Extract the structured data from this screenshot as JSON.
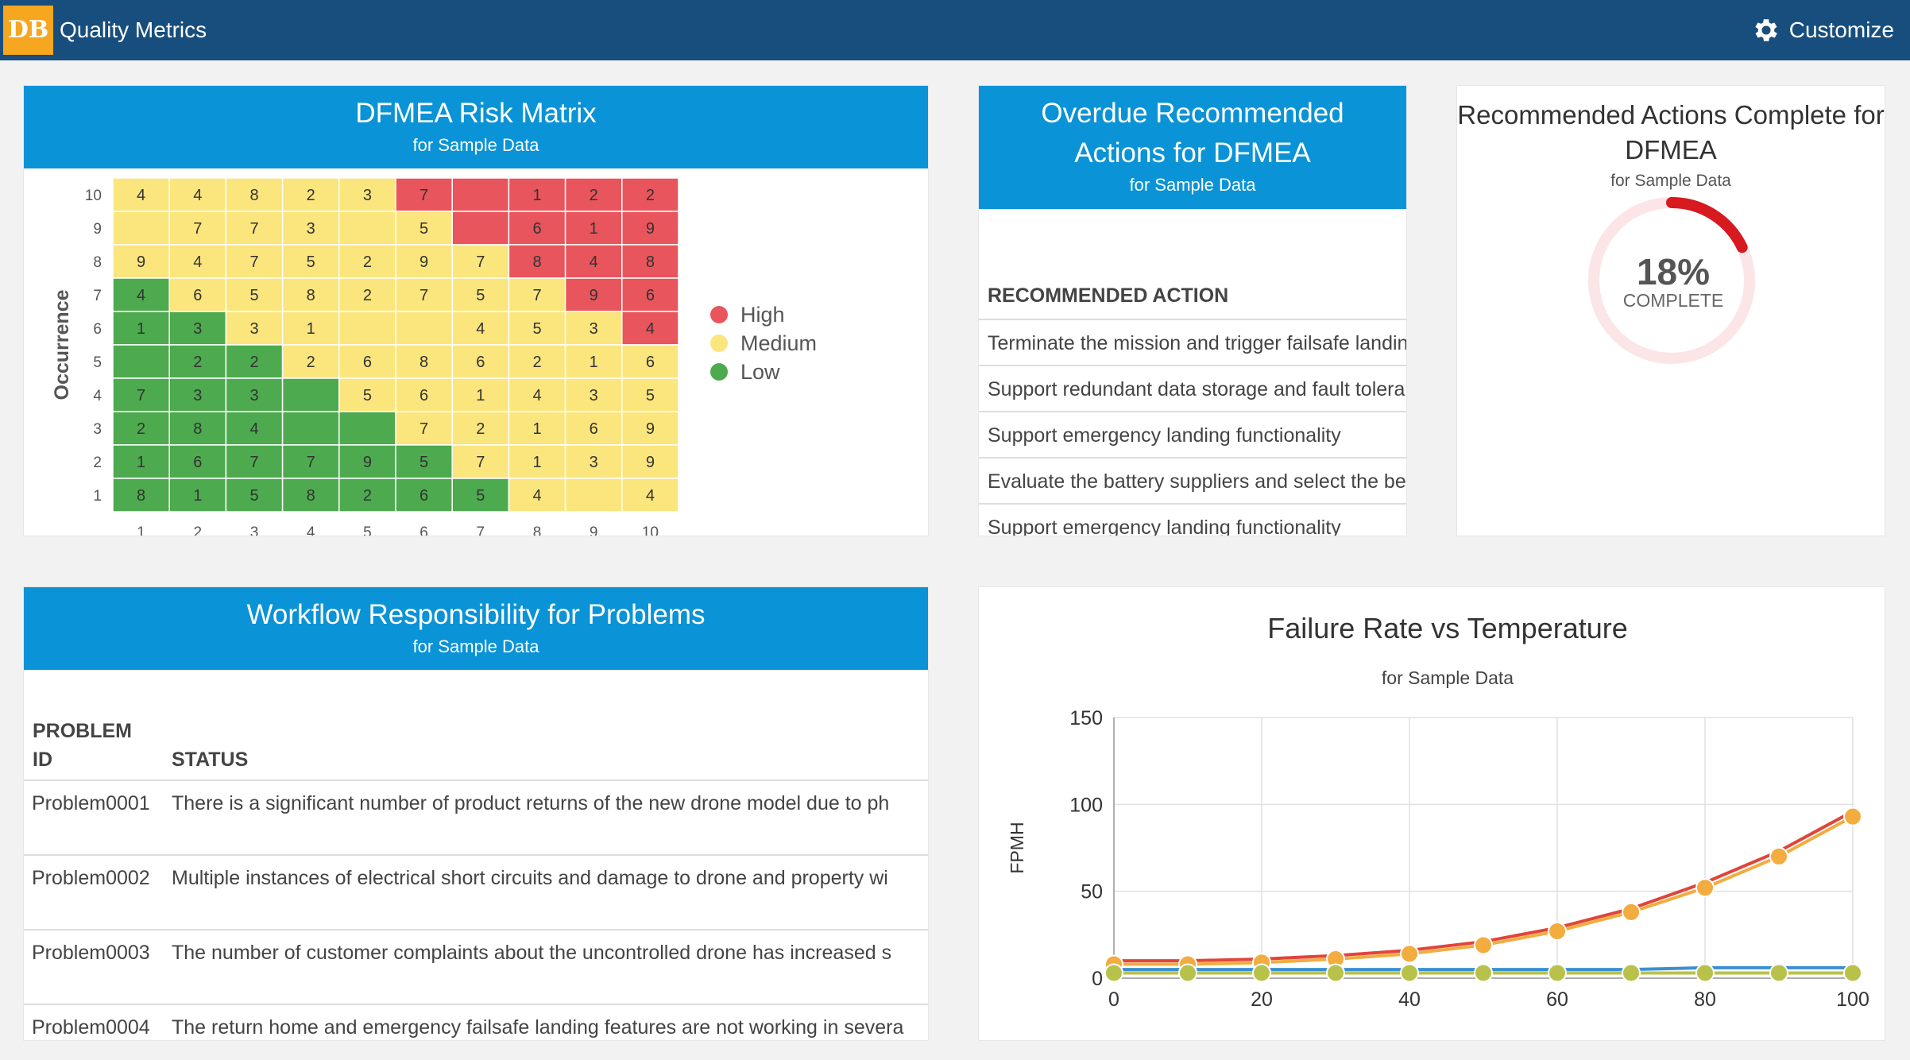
{
  "app": {
    "logo": "DB",
    "title": "Quality Metrics",
    "customize_label": "Customize"
  },
  "risk_matrix": {
    "title": "DFMEA Risk Matrix",
    "subtitle": "for Sample Data",
    "y_axis_label": "Occurrence",
    "x_ticks": [
      "1",
      "2",
      "3",
      "4",
      "5",
      "6",
      "7",
      "8",
      "9",
      "10"
    ],
    "y_ticks": [
      "10",
      "9",
      "8",
      "7",
      "6",
      "5",
      "4",
      "3",
      "2",
      "1"
    ],
    "colors": {
      "red": "#e8555c",
      "yellow": "#fbe57d",
      "green": "#4daa4f"
    },
    "legend": [
      {
        "label": "High",
        "color": "#e8555c"
      },
      {
        "label": "Medium",
        "color": "#fbe57d"
      },
      {
        "label": "Low",
        "color": "#4daa4f"
      }
    ],
    "rows": [
      {
        "occurrence": "10",
        "colors": [
          "Y",
          "Y",
          "Y",
          "Y",
          "Y",
          "R",
          "R",
          "R",
          "R",
          "R"
        ],
        "values": [
          "4",
          "4",
          "8",
          "2",
          "3",
          "7",
          "",
          "1",
          "2",
          "2"
        ]
      },
      {
        "occurrence": "9",
        "colors": [
          "Y",
          "Y",
          "Y",
          "Y",
          "Y",
          "Y",
          "R",
          "R",
          "R",
          "R"
        ],
        "values": [
          "",
          "7",
          "7",
          "3",
          "",
          "5",
          "",
          "6",
          "1",
          "9"
        ]
      },
      {
        "occurrence": "8",
        "colors": [
          "Y",
          "Y",
          "Y",
          "Y",
          "Y",
          "Y",
          "Y",
          "R",
          "R",
          "R"
        ],
        "values": [
          "9",
          "4",
          "7",
          "5",
          "2",
          "9",
          "7",
          "8",
          "4",
          "8"
        ]
      },
      {
        "occurrence": "7",
        "colors": [
          "G",
          "Y",
          "Y",
          "Y",
          "Y",
          "Y",
          "Y",
          "Y",
          "R",
          "R"
        ],
        "values": [
          "4",
          "6",
          "5",
          "8",
          "2",
          "7",
          "5",
          "7",
          "9",
          "6"
        ]
      },
      {
        "occurrence": "6",
        "colors": [
          "G",
          "G",
          "Y",
          "Y",
          "Y",
          "Y",
          "Y",
          "Y",
          "Y",
          "R"
        ],
        "values": [
          "1",
          "3",
          "3",
          "1",
          "",
          "",
          "4",
          "5",
          "3",
          "4"
        ]
      },
      {
        "occurrence": "5",
        "colors": [
          "G",
          "G",
          "G",
          "Y",
          "Y",
          "Y",
          "Y",
          "Y",
          "Y",
          "Y"
        ],
        "values": [
          "",
          "2",
          "2",
          "2",
          "6",
          "8",
          "6",
          "2",
          "1",
          "6"
        ]
      },
      {
        "occurrence": "4",
        "colors": [
          "G",
          "G",
          "G",
          "G",
          "Y",
          "Y",
          "Y",
          "Y",
          "Y",
          "Y"
        ],
        "values": [
          "7",
          "3",
          "3",
          "",
          "5",
          "6",
          "1",
          "4",
          "3",
          "5"
        ]
      },
      {
        "occurrence": "3",
        "colors": [
          "G",
          "G",
          "G",
          "G",
          "G",
          "Y",
          "Y",
          "Y",
          "Y",
          "Y"
        ],
        "values": [
          "2",
          "8",
          "4",
          "",
          "",
          "7",
          "2",
          "1",
          "6",
          "9"
        ]
      },
      {
        "occurrence": "2",
        "colors": [
          "G",
          "G",
          "G",
          "G",
          "G",
          "G",
          "Y",
          "Y",
          "Y",
          "Y"
        ],
        "values": [
          "1",
          "6",
          "7",
          "7",
          "9",
          "5",
          "7",
          "1",
          "3",
          "9"
        ]
      },
      {
        "occurrence": "1",
        "colors": [
          "G",
          "G",
          "G",
          "G",
          "G",
          "G",
          "G",
          "Y",
          "Y",
          "Y"
        ],
        "values": [
          "8",
          "1",
          "5",
          "8",
          "2",
          "6",
          "5",
          "4",
          "",
          "4"
        ]
      }
    ]
  },
  "overdue": {
    "title_line1": "Overdue Recommended",
    "title_line2": "Actions for DFMEA",
    "subtitle": "for Sample Data",
    "column_header": "RECOMMENDED ACTION",
    "rows": [
      "Terminate the mission and trigger failsafe landing",
      "Support redundant data storage and fault tolerance",
      "Support emergency landing functionality",
      "Evaluate the battery suppliers and select the best",
      "Support emergency landing functionality"
    ]
  },
  "complete": {
    "title_line1": "Recommended Actions Complete for",
    "title_line2": "DFMEA",
    "subtitle": "for Sample Data",
    "percent_text": "18%",
    "percent_value": 18,
    "complete_label": "COMPLETE",
    "color": "#d71920",
    "track_color": "#fbe5e6"
  },
  "workflow": {
    "title": "Workflow Responsibility for Problems",
    "subtitle": "for Sample Data",
    "col1_line1": "PROBLEM",
    "col1_line2": "ID",
    "col2": "STATUS",
    "rows": [
      {
        "id": "Problem0001",
        "status": "There is a significant number of product returns of the new drone model due to ph"
      },
      {
        "id": "Problem0002",
        "status": "Multiple instances of electrical short circuits and damage to drone and property wi"
      },
      {
        "id": "Problem0003",
        "status": "The number of customer complaints about the uncontrolled drone has increased s"
      },
      {
        "id": "Problem0004",
        "status": "The return home and emergency failsafe landing features are not working in severa"
      }
    ]
  },
  "chart_data": {
    "type": "line",
    "title": "Failure Rate vs Temperature",
    "subtitle": "for Sample Data",
    "xlabel": "",
    "ylabel": "FPMH",
    "xlim": [
      0,
      100
    ],
    "ylim": [
      0,
      150
    ],
    "x_ticks": [
      0,
      20,
      40,
      60,
      80,
      100
    ],
    "y_ticks": [
      0,
      50,
      100,
      150
    ],
    "grid": true,
    "x": [
      0,
      10,
      20,
      30,
      40,
      50,
      60,
      70,
      80,
      90,
      100
    ],
    "series": [
      {
        "color": "#e0453a",
        "marker": false,
        "values": [
          10,
          10,
          11,
          13,
          16,
          21,
          29,
          40,
          55,
          73,
          96
        ]
      },
      {
        "color": "#f2ac3f",
        "marker": true,
        "values": [
          8,
          8,
          9,
          11,
          14,
          19,
          27,
          38,
          52,
          70,
          93
        ]
      },
      {
        "color": "#3a8fd1",
        "marker": false,
        "values": [
          5,
          5,
          5,
          5,
          5,
          5,
          5,
          5,
          6,
          6,
          6
        ]
      },
      {
        "color": "#b8c24b",
        "marker": true,
        "values": [
          3,
          3,
          3,
          3,
          3,
          3,
          3,
          3,
          3,
          3,
          3
        ]
      }
    ]
  }
}
